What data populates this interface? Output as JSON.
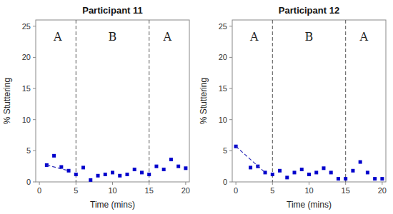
{
  "chart_data": [
    {
      "type": "scatter",
      "title": "Participant 11",
      "xlabel": "Time (mins)",
      "ylabel": "% Stuttering",
      "xlim": [
        -0.5,
        20.5
      ],
      "ylim": [
        0,
        26
      ],
      "xticks": [
        0,
        5,
        10,
        15,
        20
      ],
      "yticks": [
        0,
        5,
        10,
        15,
        20,
        25
      ],
      "grid": false,
      "series": [
        {
          "type": "scatter",
          "marker": "square",
          "color": "#0000CC",
          "x": [
            1,
            2,
            3,
            4,
            5,
            6,
            7,
            8,
            9,
            10,
            11,
            12,
            13,
            14,
            15,
            16,
            17,
            18,
            19,
            20
          ],
          "values": [
            2.7,
            4.2,
            2.4,
            1.8,
            1.2,
            2.3,
            0.3,
            1.0,
            1.2,
            1.5,
            1.0,
            1.2,
            2.0,
            1.5,
            1.2,
            2.5,
            2.0,
            3.6,
            2.5,
            2.2
          ]
        },
        {
          "type": "line",
          "line_style": "dashed",
          "color": "#3333BB",
          "x": [
            1,
            4
          ],
          "values": [
            2.7,
            1.8
          ]
        }
      ],
      "vlines": [
        {
          "x": 5,
          "color": "#555555",
          "line_style": "dashed"
        },
        {
          "x": 15,
          "color": "#555555",
          "line_style": "dashed"
        }
      ],
      "annotations": [
        {
          "text": "A",
          "x": 2.5,
          "y": 24.0
        },
        {
          "text": "B",
          "x": 10,
          "y": 24.0
        },
        {
          "text": "A",
          "x": 17.5,
          "y": 24.0
        }
      ]
    },
    {
      "type": "scatter",
      "title": "Participant 12",
      "xlabel": "Time (mins)",
      "ylabel": "% Stuttering",
      "xlim": [
        -0.5,
        20.5
      ],
      "ylim": [
        0,
        26
      ],
      "xticks": [
        0,
        5,
        10,
        15,
        20
      ],
      "yticks": [
        0,
        5,
        10,
        15,
        20,
        25
      ],
      "grid": false,
      "series": [
        {
          "type": "scatter",
          "marker": "square",
          "color": "#0000CC",
          "x": [
            0,
            2,
            3,
            4,
            5,
            6,
            7,
            8,
            9,
            10,
            11,
            12,
            13,
            14,
            15,
            16,
            17,
            18,
            19,
            20
          ],
          "values": [
            5.7,
            2.3,
            2.5,
            1.5,
            1.2,
            1.8,
            0.7,
            1.5,
            2.0,
            1.2,
            1.5,
            2.2,
            1.5,
            0.5,
            0.5,
            1.8,
            3.2,
            1.5,
            0.5,
            0.5
          ]
        },
        {
          "type": "line",
          "line_style": "dashed",
          "color": "#3333BB",
          "x": [
            0,
            4
          ],
          "values": [
            5.7,
            1.5
          ]
        }
      ],
      "vlines": [
        {
          "x": 5,
          "color": "#555555",
          "line_style": "dashed"
        },
        {
          "x": 15,
          "color": "#555555",
          "line_style": "dashed"
        }
      ],
      "annotations": [
        {
          "text": "A",
          "x": 2.5,
          "y": 24.0
        },
        {
          "text": "B",
          "x": 10,
          "y": 24.0
        },
        {
          "text": "A",
          "x": 17.5,
          "y": 24.0
        }
      ]
    }
  ]
}
